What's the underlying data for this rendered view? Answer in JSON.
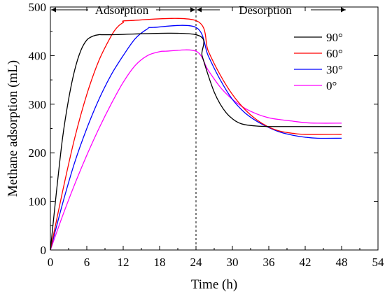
{
  "chart_data": {
    "type": "line",
    "xlabel": "Time (h)",
    "ylabel": "Methane adsorption (mL)",
    "xlim": [
      0,
      54
    ],
    "ylim": [
      0,
      500
    ],
    "xticks": [
      0,
      6,
      12,
      18,
      24,
      30,
      36,
      42,
      48,
      54
    ],
    "yticks": [
      0,
      100,
      200,
      300,
      400,
      500
    ],
    "grid": false,
    "legend_position": "top-right",
    "phases": [
      {
        "label": "Adsorption",
        "from": 0,
        "to": 24
      },
      {
        "label": "Desorption",
        "from": 24,
        "to": 48
      }
    ],
    "divider_x": 24,
    "series": [
      {
        "name": "90°",
        "color": "#000000",
        "points": [
          [
            0,
            0
          ],
          [
            1,
            120
          ],
          [
            2,
            230
          ],
          [
            3,
            310
          ],
          [
            4,
            370
          ],
          [
            5,
            410
          ],
          [
            6,
            432
          ],
          [
            7,
            440
          ],
          [
            8,
            443
          ],
          [
            10,
            443
          ],
          [
            24,
            443
          ],
          [
            25,
            400
          ],
          [
            26,
            360
          ],
          [
            27,
            325
          ],
          [
            28,
            300
          ],
          [
            29,
            282
          ],
          [
            30,
            270
          ],
          [
            31,
            262
          ],
          [
            32,
            258
          ],
          [
            34,
            255
          ],
          [
            36,
            254
          ],
          [
            40,
            254
          ],
          [
            48,
            254
          ]
        ]
      },
      {
        "name": "60°",
        "color": "#ff0000",
        "points": [
          [
            0,
            0
          ],
          [
            2,
            120
          ],
          [
            4,
            230
          ],
          [
            6,
            320
          ],
          [
            8,
            390
          ],
          [
            10,
            440
          ],
          [
            11,
            458
          ],
          [
            12,
            468
          ],
          [
            13,
            472
          ],
          [
            24,
            472
          ],
          [
            26,
            410
          ],
          [
            28,
            360
          ],
          [
            30,
            320
          ],
          [
            32,
            290
          ],
          [
            34,
            268
          ],
          [
            36,
            253
          ],
          [
            38,
            244
          ],
          [
            40,
            240
          ],
          [
            42,
            238
          ],
          [
            48,
            238
          ]
        ]
      },
      {
        "name": "30°",
        "color": "#0000ff",
        "points": [
          [
            0,
            0
          ],
          [
            2,
            95
          ],
          [
            4,
            180
          ],
          [
            6,
            250
          ],
          [
            8,
            310
          ],
          [
            10,
            360
          ],
          [
            12,
            400
          ],
          [
            14,
            435
          ],
          [
            16,
            455
          ],
          [
            17,
            458
          ],
          [
            24,
            458
          ],
          [
            26,
            400
          ],
          [
            28,
            350
          ],
          [
            30,
            310
          ],
          [
            32,
            283
          ],
          [
            34,
            265
          ],
          [
            36,
            252
          ],
          [
            38,
            242
          ],
          [
            40,
            236
          ],
          [
            42,
            232
          ],
          [
            44,
            230
          ],
          [
            48,
            230
          ]
        ]
      },
      {
        "name": "0°",
        "color": "#ff00ff",
        "points": [
          [
            0,
            0
          ],
          [
            2,
            70
          ],
          [
            4,
            135
          ],
          [
            6,
            195
          ],
          [
            8,
            250
          ],
          [
            10,
            300
          ],
          [
            12,
            345
          ],
          [
            14,
            380
          ],
          [
            16,
            400
          ],
          [
            18,
            408
          ],
          [
            19,
            409
          ],
          [
            24,
            409
          ],
          [
            26,
            370
          ],
          [
            28,
            335
          ],
          [
            30,
            310
          ],
          [
            32,
            292
          ],
          [
            34,
            280
          ],
          [
            36,
            272
          ],
          [
            38,
            268
          ],
          [
            40,
            265
          ],
          [
            42,
            262
          ],
          [
            44,
            261
          ],
          [
            48,
            261
          ]
        ]
      }
    ]
  }
}
